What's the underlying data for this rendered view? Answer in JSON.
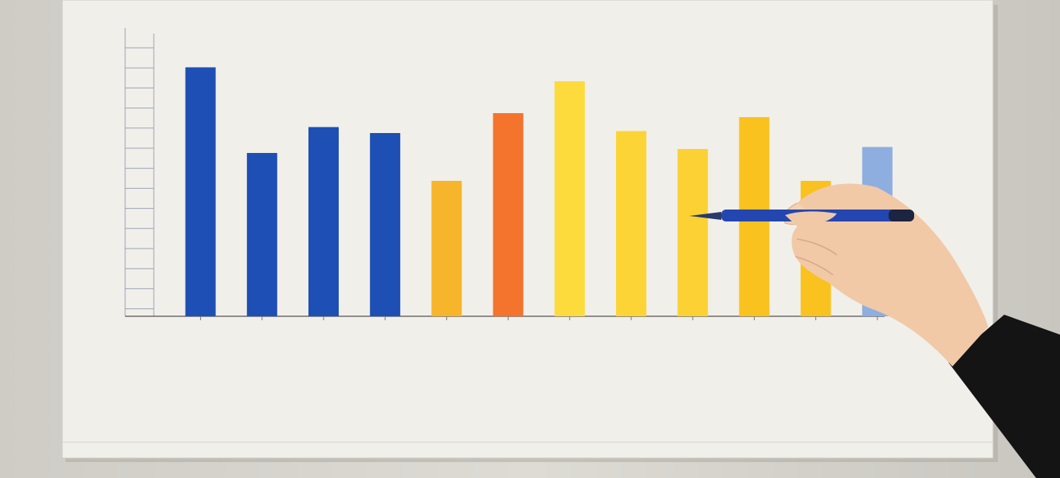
{
  "chart_data": {
    "type": "bar",
    "categories": [
      null,
      null,
      null,
      null,
      null,
      null,
      null,
      null,
      null,
      null,
      null,
      null
    ],
    "values": [
      12.5,
      8.2,
      9.5,
      9.2,
      6.8,
      10.2,
      11.8,
      9.3,
      8.4,
      10.0,
      6.8,
      8.5
    ],
    "colors": [
      "#1d4fb5",
      "#1d4fb5",
      "#1d4fb5",
      "#1d4fb5",
      "#f7b52c",
      "#f4742e",
      "#fddb3d",
      "#fcd435",
      "#fcd133",
      "#f9c21e",
      "#f9c21e",
      "#8eaee0"
    ],
    "ylim": [
      0,
      14.2
    ]
  }
}
